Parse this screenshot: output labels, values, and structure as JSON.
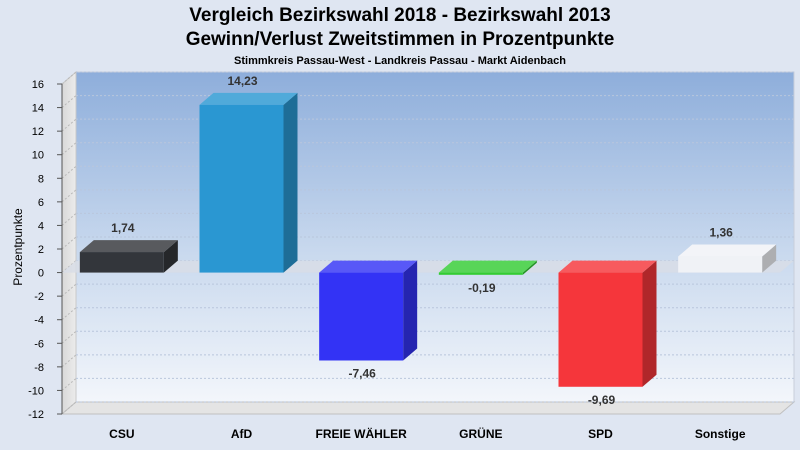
{
  "chart_data": {
    "type": "bar",
    "title": "Vergleich Bezirkswahl 2018 - Bezirkswahl 2013",
    "subtitle_line": "Gewinn/Verlust Zweitstimmen in Prozentpunkte",
    "subtitle": "Stimmkreis Passau-West - Landkreis Passau - Markt Aidenbach",
    "xlabel": "",
    "ylabel": "Prozentpunkte",
    "ylim": [
      -12,
      16
    ],
    "yticks": [
      16,
      14,
      12,
      10,
      8,
      6,
      4,
      2,
      0,
      -2,
      -4,
      -6,
      -8,
      -10,
      -12
    ],
    "categories": [
      "CSU",
      "AfD",
      "FREIE WÄHLER",
      "GRÜNE",
      "SPD",
      "Sonstige"
    ],
    "values": [
      1.74,
      14.23,
      -7.46,
      -0.19,
      -9.69,
      1.36
    ],
    "value_labels": [
      "1,74",
      "14,23",
      "-7,46",
      "-0,19",
      "-9,69",
      "1,36"
    ],
    "colors": [
      "#33363b",
      "#2a97d2",
      "#3333f5",
      "#33cc33",
      "#f5363b",
      "#f0f2f6"
    ],
    "grid": true,
    "legend": "none"
  }
}
